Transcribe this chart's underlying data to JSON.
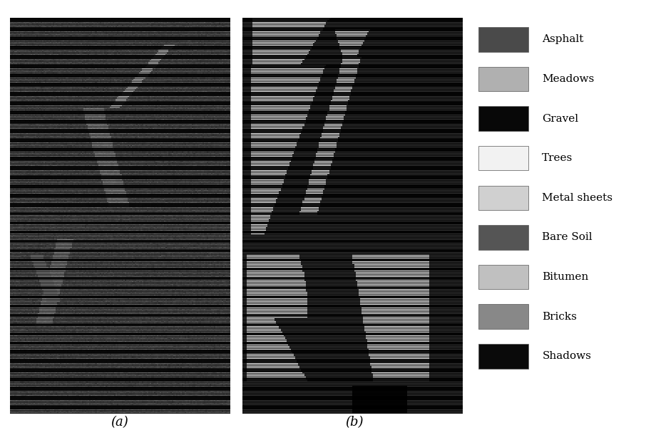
{
  "legend_labels": [
    "Asphalt",
    "Meadows",
    "Gravel",
    "Trees",
    "Metal sheets",
    "Bare Soil",
    "Bitumen",
    "Bricks",
    "Shadows"
  ],
  "legend_colors": [
    "#4a4a4a",
    "#b0b0b0",
    "#080808",
    "#f2f2f2",
    "#d0d0d0",
    "#555555",
    "#c0c0c0",
    "#888888",
    "#0a0a0a"
  ],
  "label_a": "(a)",
  "label_b": "(b)",
  "bg_color": "#ffffff"
}
